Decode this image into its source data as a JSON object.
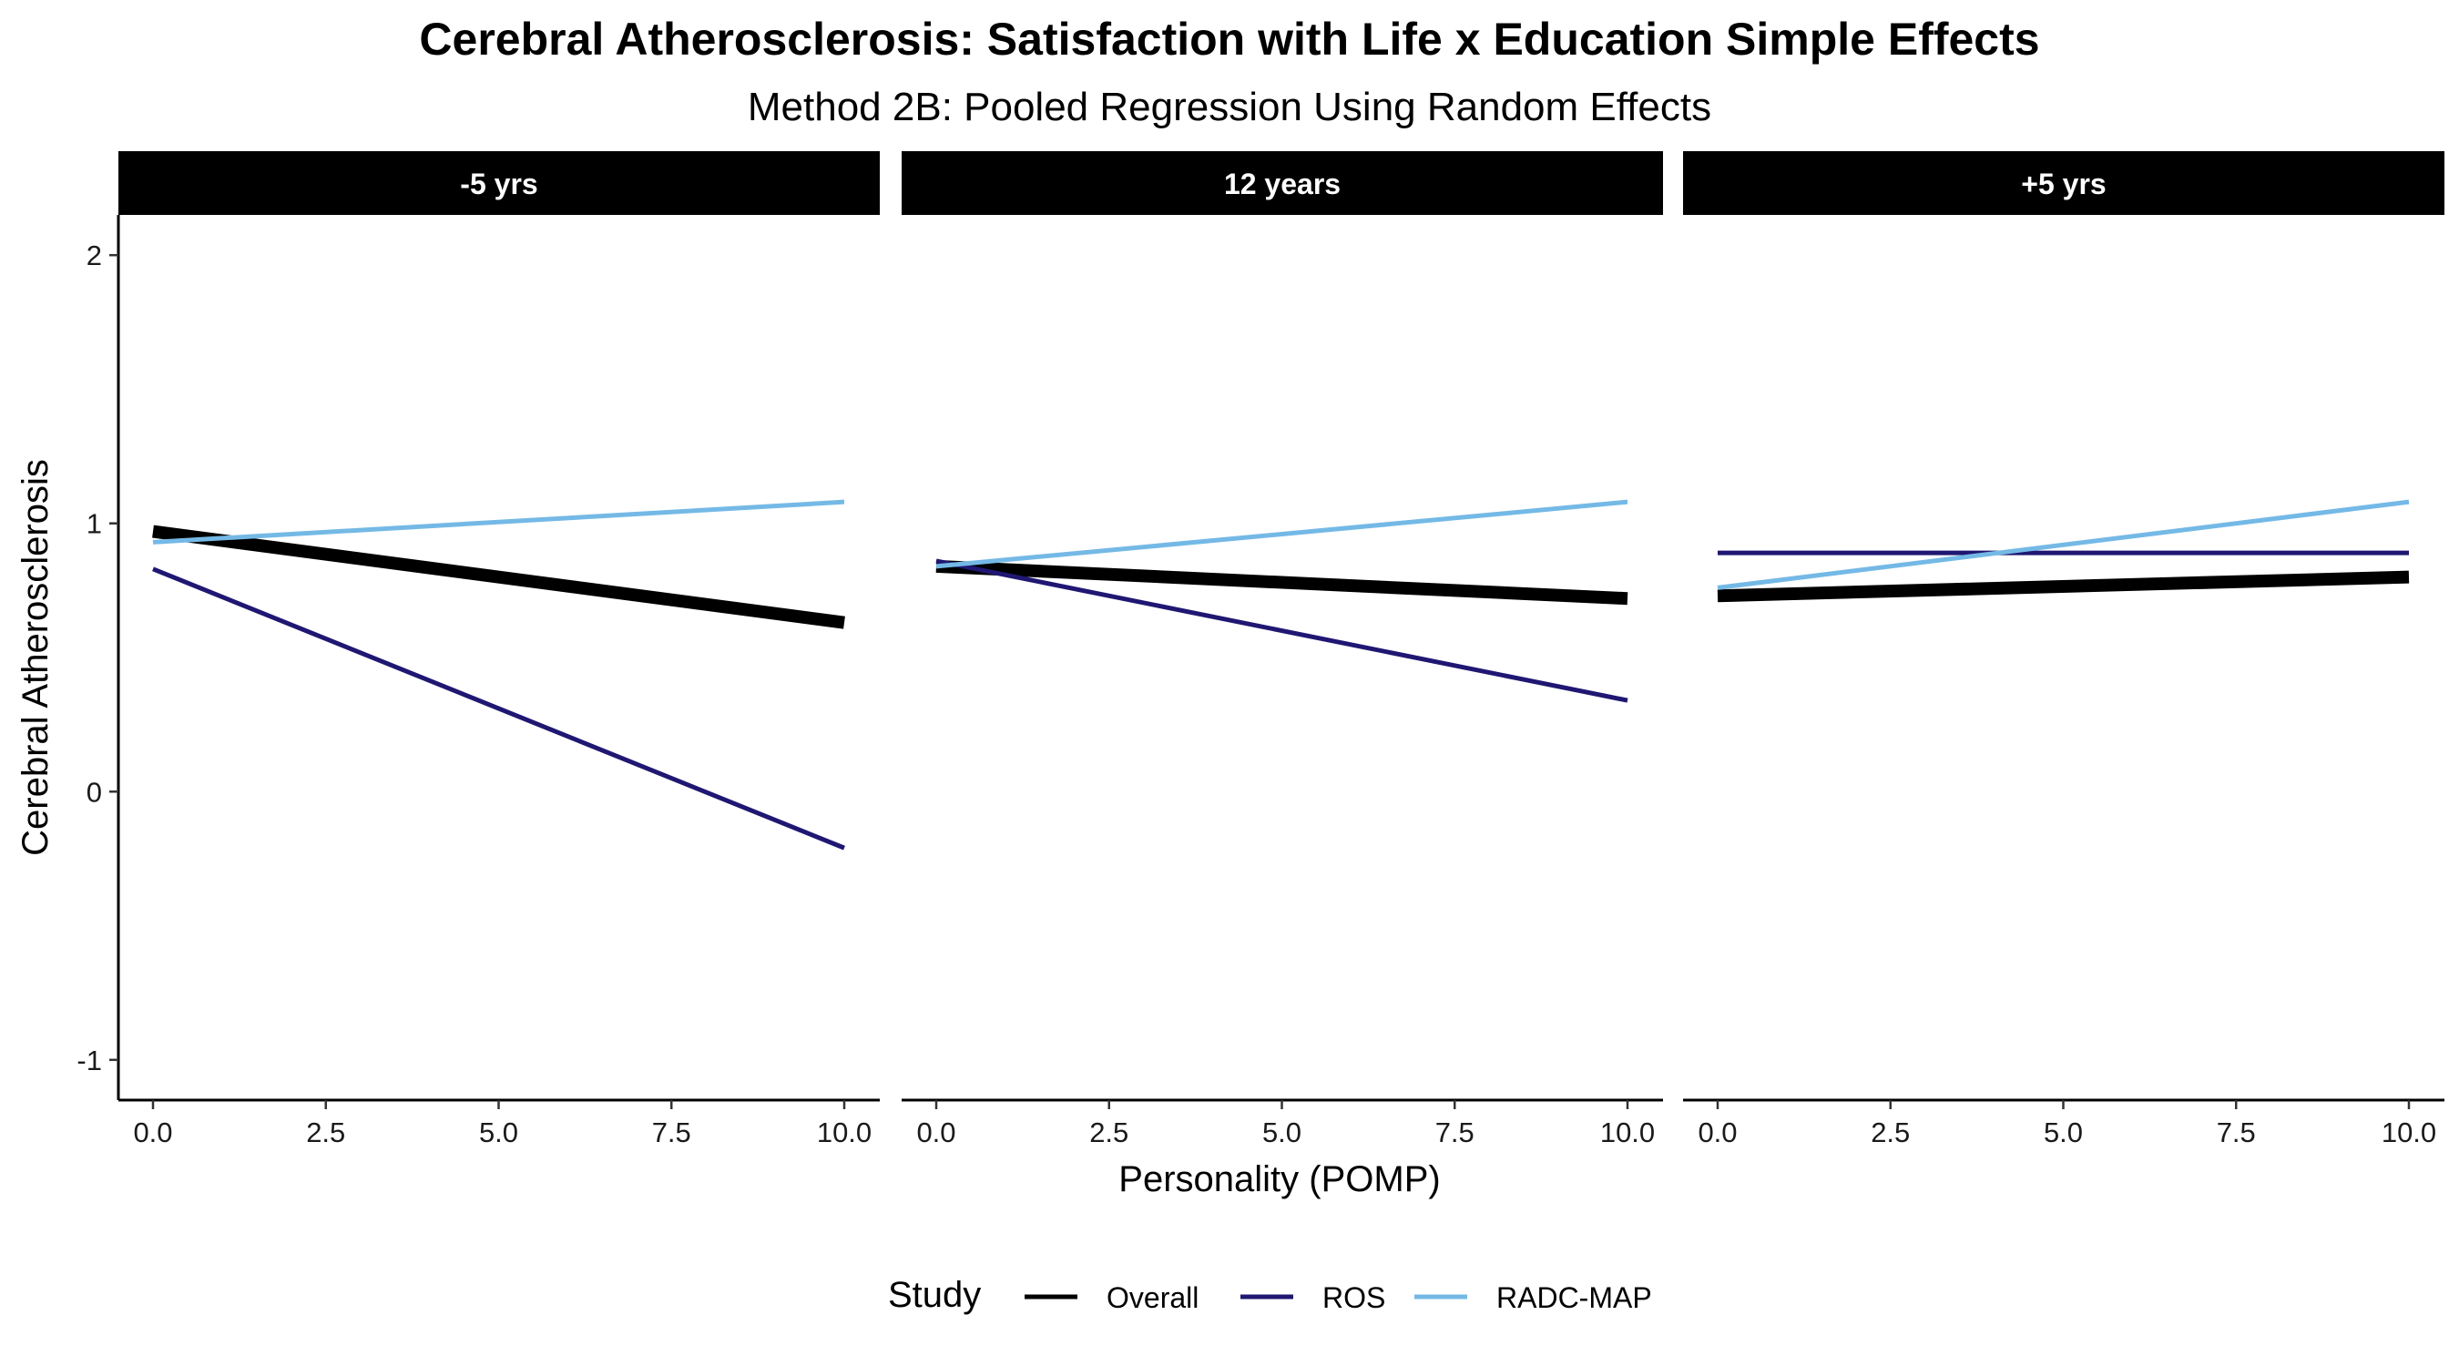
{
  "chart_data": {
    "type": "line",
    "title": "Cerebral Atherosclerosis: Satisfaction with Life x Education Simple Effects",
    "subtitle": "Method 2B: Pooled Regression Using Random Effects",
    "xlabel": "Personality (POMP)",
    "ylabel": "Cerebral Atherosclerosis",
    "xlim": [
      0,
      10
    ],
    "ylim": [
      -1.15,
      2.15
    ],
    "x_ticks": [
      0,
      2.5,
      5,
      7.5,
      10
    ],
    "x_tick_labels": [
      "0.0",
      "2.5",
      "5.0",
      "7.5",
      "10.0"
    ],
    "y_ticks": [
      -1,
      0,
      1,
      2
    ],
    "y_tick_labels": [
      "-1",
      "0",
      "1",
      "2"
    ],
    "grid": false,
    "legend": {
      "title": "Study",
      "placement": "bottom",
      "entries": [
        "Overall",
        "ROS",
        "RADC-MAP"
      ]
    },
    "series_styles": {
      "Overall": {
        "color": "#000000",
        "width": "thick"
      },
      "ROS": {
        "color": "#1f1772",
        "width": "thin"
      },
      "RADC-MAP": {
        "color": "#74b9e6",
        "width": "thin"
      }
    },
    "panels": [
      {
        "label": "-5 yrs",
        "series": [
          {
            "name": "Overall",
            "x": [
              0,
              10
            ],
            "y": [
              0.97,
              0.63
            ]
          },
          {
            "name": "ROS",
            "x": [
              0,
              10
            ],
            "y": [
              0.83,
              -0.21
            ]
          },
          {
            "name": "RADC-MAP",
            "x": [
              0,
              10
            ],
            "y": [
              0.93,
              1.08
            ]
          }
        ]
      },
      {
        "label": "12 years",
        "series": [
          {
            "name": "Overall",
            "x": [
              0,
              10
            ],
            "y": [
              0.84,
              0.72
            ]
          },
          {
            "name": "ROS",
            "x": [
              0,
              10
            ],
            "y": [
              0.86,
              0.34
            ]
          },
          {
            "name": "RADC-MAP",
            "x": [
              0,
              10
            ],
            "y": [
              0.84,
              1.08
            ]
          }
        ]
      },
      {
        "label": "+5 yrs",
        "series": [
          {
            "name": "Overall",
            "x": [
              0,
              10
            ],
            "y": [
              0.73,
              0.8
            ]
          },
          {
            "name": "ROS",
            "x": [
              0,
              10
            ],
            "y": [
              0.89,
              0.89
            ]
          },
          {
            "name": "RADC-MAP",
            "x": [
              0,
              10
            ],
            "y": [
              0.76,
              1.08
            ]
          }
        ]
      }
    ]
  }
}
